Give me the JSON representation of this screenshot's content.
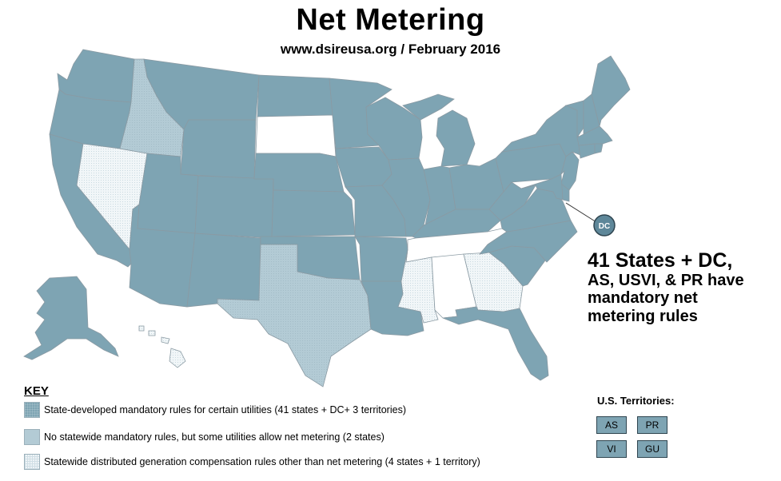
{
  "header": {
    "title": "Net Metering",
    "subtitle": "www.dsireusa.org / February 2016"
  },
  "map": {
    "dc_label": "DC",
    "categories": {
      "mandatory": "State-developed mandatory rules for certain utilities (41 states + DC+ 3 territories)",
      "some_utilities": "No statewide mandatory rules, but some utilities allow net metering (2 states)",
      "other_dg": "Statewide distributed generation compensation rules other than net metering (4 states + 1 territory)"
    },
    "states_some_utilities": [
      "Idaho",
      "Texas"
    ],
    "states_other_dg": [
      "Nevada",
      "Mississippi",
      "Georgia",
      "Hawaii"
    ],
    "states_no_policy": [
      "South Dakota",
      "Tennessee",
      "Alabama"
    ],
    "colors": {
      "mandatory": "#7ea4b3",
      "some_utilities": "#b3cbd5",
      "other_dg": "#eef4f7",
      "none": "#ffffff"
    }
  },
  "callout": {
    "line1": "41 States + DC,",
    "line2": "AS, USVI, & PR have",
    "line3": "mandatory net",
    "line4": "metering rules"
  },
  "key": {
    "title": "KEY",
    "items": [
      "State-developed mandatory rules for certain utilities (41 states + DC+ 3 territories)",
      "No statewide mandatory rules, but some utilities allow net metering (2 states)",
      "Statewide distributed generation compensation rules other than net metering (4 states + 1 territory)"
    ]
  },
  "territories": {
    "title": "U.S. Territories:",
    "items": [
      "AS",
      "PR",
      "VI",
      "GU"
    ]
  }
}
